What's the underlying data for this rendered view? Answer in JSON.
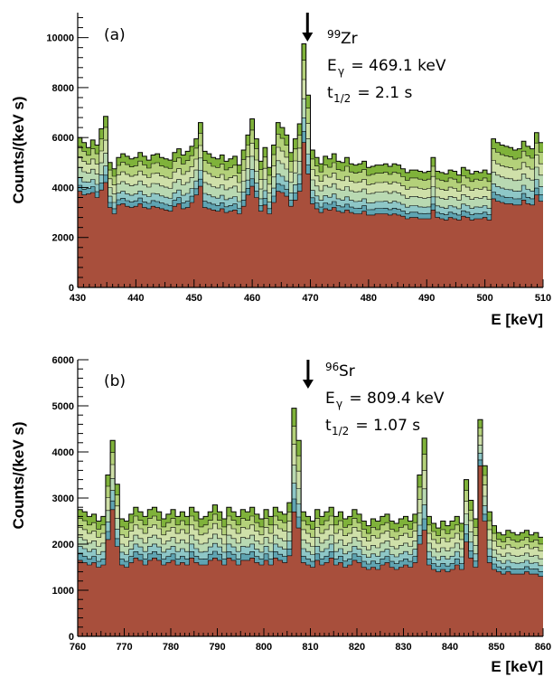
{
  "colors": {
    "layers": [
      "#a84f3c",
      "#5fa4b2",
      "#8ec7c7",
      "#b9d9b2",
      "#cfe0a9",
      "#b4d17a",
      "#7fb23a"
    ],
    "outline": "#000000",
    "arrow": "#000000"
  },
  "chart_data": [
    {
      "type": "area",
      "stacked": true,
      "histogram": true,
      "panel_label": "(a)",
      "isotope": {
        "mass": "99",
        "element": "Zr"
      },
      "energy": {
        "prefix": "E",
        "sub": "γ",
        "text": " = 469.1 keV"
      },
      "halflife": {
        "prefix": "t",
        "sub": "1/2",
        "text": " = 2.1 s"
      },
      "arrow_x": 469,
      "xlabel": "E [keV]",
      "ylabel": "Counts/(keV s)",
      "xlim": [
        430,
        510
      ],
      "ylim": [
        0,
        11000
      ],
      "xticks": [
        430,
        440,
        450,
        460,
        470,
        480,
        490,
        500,
        510
      ],
      "yticks": [
        0,
        2000,
        4000,
        6000,
        8000,
        10000
      ],
      "totals": [
        6000,
        5800,
        5600,
        5900,
        5700,
        6350,
        6850,
        5000,
        4750,
        5200,
        5350,
        5250,
        5150,
        5200,
        5400,
        5250,
        5100,
        5300,
        5350,
        5200,
        5150,
        5100,
        5400,
        5550,
        5300,
        5450,
        5650,
        5950,
        6600,
        5450,
        5350,
        5200,
        5150,
        5300,
        5050,
        5150,
        5250,
        4900,
        5500,
        6100,
        6750,
        5950,
        5050,
        5600,
        4800,
        5700,
        6600,
        6400,
        6100,
        5400,
        5950,
        6550,
        9750,
        7700,
        5500,
        5200,
        4950,
        5250,
        5150,
        5350,
        5050,
        5000,
        5200,
        4950,
        4900,
        4950,
        5050,
        4800,
        4850,
        4900,
        4900,
        4950,
        4850,
        4950,
        4900,
        4750,
        4600,
        4700,
        4700,
        4650,
        4600,
        4650,
        5200,
        4650,
        4600,
        4550,
        4700,
        4650,
        4500,
        4800,
        4700,
        4550,
        4650,
        4600,
        4700,
        4550,
        5950,
        5800,
        5700,
        5650,
        5600,
        5500,
        5550,
        5850,
        5650,
        5550,
        6200,
        5800
      ],
      "bases": [
        3850,
        3700,
        3750,
        3800,
        3600,
        3900,
        4200,
        3200,
        2950,
        3300,
        3350,
        3250,
        3200,
        3250,
        3350,
        3200,
        3150,
        3250,
        3200,
        3150,
        3100,
        3050,
        3250,
        3350,
        3150,
        3200,
        3400,
        3700,
        4050,
        3200,
        3150,
        3100,
        3050,
        3150,
        3000,
        3050,
        3100,
        2950,
        3250,
        3700,
        4050,
        3600,
        3050,
        3300,
        2950,
        3400,
        3850,
        3800,
        3650,
        3250,
        3500,
        3850,
        5800,
        4550,
        3350,
        3150,
        3000,
        3150,
        3100,
        3200,
        3050,
        3000,
        3100,
        3000,
        2950,
        2950,
        3050,
        2900,
        2900,
        2950,
        2950,
        2950,
        2900,
        2950,
        2900,
        2850,
        2750,
        2800,
        2800,
        2750,
        2750,
        2750,
        3100,
        2800,
        2750,
        2700,
        2800,
        2750,
        2700,
        2850,
        2800,
        2700,
        2750,
        2750,
        2800,
        2700,
        3550,
        3450,
        3400,
        3350,
        3350,
        3300,
        3300,
        3500,
        3350,
        3300,
        3700,
        3450
      ],
      "fractions": [
        0.64,
        0.04,
        0.05,
        0.07,
        0.07,
        0.07,
        0.06
      ]
    },
    {
      "type": "area",
      "stacked": true,
      "histogram": true,
      "panel_label": "(b)",
      "isotope": {
        "mass": "96",
        "element": "Sr"
      },
      "energy": {
        "prefix": "E",
        "sub": "γ",
        "text": " = 809.4 keV"
      },
      "halflife": {
        "prefix": "t",
        "sub": "1/2",
        "text": " = 1.07 s"
      },
      "arrow_x": 809,
      "xlabel": "E [keV]",
      "ylabel": "Counts/(keV s)",
      "xlim": [
        760,
        860
      ],
      "ylim": [
        0,
        6000
      ],
      "xticks": [
        760,
        770,
        780,
        790,
        800,
        810,
        820,
        830,
        840,
        850,
        860
      ],
      "yticks": [
        0,
        1000,
        2000,
        3000,
        4000,
        5000,
        6000
      ],
      "totals": [
        2750,
        2700,
        2600,
        2650,
        2500,
        2600,
        3500,
        4250,
        3300,
        2550,
        2500,
        2650,
        2800,
        2700,
        2600,
        2750,
        2800,
        2700,
        2550,
        2650,
        2750,
        2600,
        2700,
        2600,
        2800,
        2700,
        2550,
        2600,
        2700,
        2850,
        2700,
        2550,
        2800,
        2700,
        2600,
        2750,
        2700,
        2800,
        2650,
        2550,
        2750,
        2600,
        2800,
        2700,
        2650,
        2900,
        4950,
        4250,
        2700,
        2600,
        2500,
        2750,
        2600,
        2700,
        2800,
        2600,
        2700,
        2550,
        2600,
        2750,
        2650,
        2500,
        2400,
        2550,
        2500,
        2600,
        2650,
        2500,
        2450,
        2550,
        2600,
        2500,
        2650,
        3500,
        4300,
        2600,
        2450,
        2350,
        2500,
        2400,
        2500,
        2600,
        2450,
        3400,
        2950,
        2550,
        4700,
        3700,
        2700,
        2400,
        2250,
        2200,
        2300,
        2250,
        2200,
        2250,
        2300,
        2200,
        2250,
        2150
      ],
      "bases": [
        1650,
        1600,
        1550,
        1600,
        1500,
        1550,
        2100,
        2750,
        1950,
        1550,
        1500,
        1600,
        1700,
        1650,
        1550,
        1650,
        1700,
        1650,
        1550,
        1600,
        1650,
        1550,
        1600,
        1550,
        1700,
        1600,
        1550,
        1550,
        1650,
        1700,
        1650,
        1550,
        1700,
        1650,
        1550,
        1650,
        1650,
        1700,
        1600,
        1550,
        1650,
        1550,
        1700,
        1650,
        1600,
        1750,
        2700,
        2350,
        1600,
        1550,
        1500,
        1650,
        1550,
        1600,
        1700,
        1550,
        1600,
        1500,
        1550,
        1650,
        1600,
        1500,
        1450,
        1500,
        1450,
        1550,
        1600,
        1500,
        1450,
        1500,
        1550,
        1500,
        1600,
        2000,
        2300,
        1550,
        1450,
        1400,
        1450,
        1400,
        1450,
        1550,
        1450,
        2050,
        1700,
        1500,
        3700,
        2500,
        1600,
        1450,
        1400,
        1350,
        1400,
        1350,
        1350,
        1350,
        1400,
        1350,
        1350,
        1300
      ],
      "fractions": [
        0.6,
        0.05,
        0.06,
        0.07,
        0.08,
        0.07,
        0.07
      ]
    }
  ]
}
